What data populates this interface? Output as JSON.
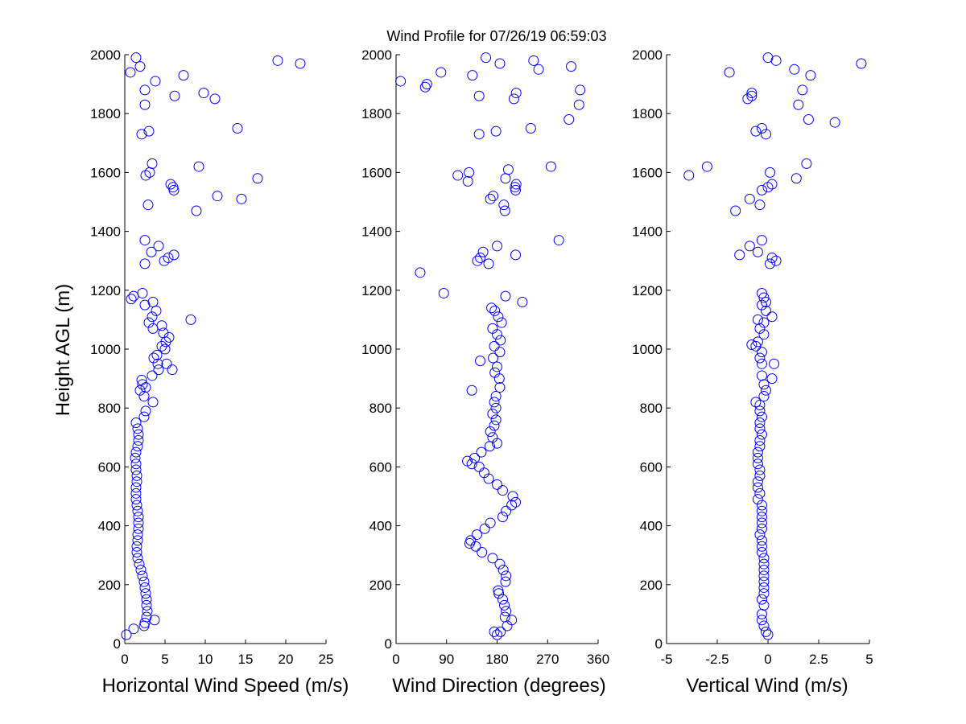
{
  "title": "Wind Profile for  07/26/19 06:59:03",
  "colors": {
    "marker": "#0000ff",
    "axis": "#000000",
    "background": "#ffffff"
  },
  "chart_data": [
    {
      "type": "scatter",
      "xlabel": "Horizontal Wind Speed (m/s)",
      "ylabel": "Height AGL (m)",
      "xlim": [
        0,
        25
      ],
      "ylim": [
        0,
        2000
      ],
      "xticks": [
        "0",
        "5",
        "10",
        "15",
        "20",
        "25"
      ],
      "yticks": [
        "0",
        "200",
        "400",
        "600",
        "800",
        "1000",
        "1200",
        "1400",
        "1600",
        "1800",
        "2000"
      ],
      "grid": false,
      "points": [
        [
          0.2,
          30
        ],
        [
          1.1,
          50
        ],
        [
          2.4,
          60
        ],
        [
          3.7,
          80
        ],
        [
          2.5,
          70
        ],
        [
          2.7,
          90
        ],
        [
          2.8,
          110
        ],
        [
          2.7,
          130
        ],
        [
          2.7,
          150
        ],
        [
          2.6,
          170
        ],
        [
          2.5,
          190
        ],
        [
          2.4,
          210
        ],
        [
          2.2,
          230
        ],
        [
          2.0,
          250
        ],
        [
          1.8,
          270
        ],
        [
          1.6,
          290
        ],
        [
          1.5,
          310
        ],
        [
          1.5,
          330
        ],
        [
          1.6,
          350
        ],
        [
          1.6,
          370
        ],
        [
          1.7,
          390
        ],
        [
          1.7,
          410
        ],
        [
          1.7,
          430
        ],
        [
          1.6,
          450
        ],
        [
          1.5,
          470
        ],
        [
          1.4,
          490
        ],
        [
          1.4,
          510
        ],
        [
          1.4,
          530
        ],
        [
          1.5,
          550
        ],
        [
          1.5,
          570
        ],
        [
          1.4,
          590
        ],
        [
          1.4,
          610
        ],
        [
          1.3,
          630
        ],
        [
          1.4,
          650
        ],
        [
          1.6,
          670
        ],
        [
          1.7,
          690
        ],
        [
          1.7,
          710
        ],
        [
          1.6,
          730
        ],
        [
          1.4,
          750
        ],
        [
          2.4,
          770
        ],
        [
          2.6,
          790
        ],
        [
          3.5,
          820
        ],
        [
          2.4,
          840
        ],
        [
          1.9,
          860
        ],
        [
          2.6,
          870
        ],
        [
          2.2,
          880
        ],
        [
          2.1,
          895
        ],
        [
          3.4,
          910
        ],
        [
          4.2,
          930
        ],
        [
          5.9,
          930
        ],
        [
          4.1,
          950
        ],
        [
          5.2,
          950
        ],
        [
          3.6,
          970
        ],
        [
          4.0,
          980
        ],
        [
          5.0,
          1000
        ],
        [
          4.6,
          1010
        ],
        [
          5.1,
          1025
        ],
        [
          5.5,
          1040
        ],
        [
          4.8,
          1055
        ],
        [
          3.5,
          1070
        ],
        [
          4.6,
          1080
        ],
        [
          3.0,
          1090
        ],
        [
          8.2,
          1100
        ],
        [
          3.4,
          1110
        ],
        [
          3.9,
          1130
        ],
        [
          2.5,
          1150
        ],
        [
          3.5,
          1160
        ],
        [
          0.8,
          1170
        ],
        [
          1.1,
          1180
        ],
        [
          2.2,
          1190
        ],
        [
          2.5,
          1290
        ],
        [
          4.9,
          1300
        ],
        [
          5.4,
          1310
        ],
        [
          6.1,
          1320
        ],
        [
          3.3,
          1330
        ],
        [
          4.2,
          1350
        ],
        [
          2.5,
          1370
        ],
        [
          8.9,
          1470
        ],
        [
          2.9,
          1490
        ],
        [
          14.5,
          1510
        ],
        [
          11.5,
          1520
        ],
        [
          6.1,
          1540
        ],
        [
          6.0,
          1550
        ],
        [
          5.7,
          1560
        ],
        [
          16.5,
          1580
        ],
        [
          2.6,
          1590
        ],
        [
          3.1,
          1600
        ],
        [
          9.2,
          1620
        ],
        [
          3.4,
          1630
        ],
        [
          3.0,
          1740
        ],
        [
          2.1,
          1730
        ],
        [
          14.0,
          1750
        ],
        [
          2.5,
          1830
        ],
        [
          11.2,
          1850
        ],
        [
          6.2,
          1860
        ],
        [
          9.8,
          1870
        ],
        [
          2.5,
          1880
        ],
        [
          3.8,
          1910
        ],
        [
          7.3,
          1930
        ],
        [
          0.7,
          1940
        ],
        [
          1.9,
          1960
        ],
        [
          19.0,
          1980
        ],
        [
          21.8,
          1970
        ],
        [
          1.4,
          1990
        ]
      ]
    },
    {
      "type": "scatter",
      "xlabel": "Wind Direction (degrees)",
      "ylabel": "",
      "xlim": [
        0,
        360
      ],
      "ylim": [
        0,
        2000
      ],
      "xticks": [
        "0",
        "90",
        "180",
        "270",
        "360"
      ],
      "yticks": [
        "0",
        "200",
        "400",
        "600",
        "800",
        "1000",
        "1200",
        "1400",
        "1600",
        "1800",
        "2000"
      ],
      "grid": false,
      "points": [
        [
          180,
          30
        ],
        [
          175,
          40
        ],
        [
          186,
          40
        ],
        [
          198,
          60
        ],
        [
          206,
          80
        ],
        [
          194,
          90
        ],
        [
          196,
          110
        ],
        [
          193,
          130
        ],
        [
          190,
          150
        ],
        [
          183,
          170
        ],
        [
          182,
          180
        ],
        [
          195,
          210
        ],
        [
          196,
          230
        ],
        [
          191,
          250
        ],
        [
          185,
          270
        ],
        [
          172,
          290
        ],
        [
          153,
          310
        ],
        [
          142,
          330
        ],
        [
          131,
          340
        ],
        [
          133,
          350
        ],
        [
          144,
          370
        ],
        [
          158,
          390
        ],
        [
          168,
          410
        ],
        [
          190,
          430
        ],
        [
          196,
          450
        ],
        [
          206,
          470
        ],
        [
          213,
          480
        ],
        [
          208,
          500
        ],
        [
          190,
          520
        ],
        [
          180,
          540
        ],
        [
          165,
          560
        ],
        [
          157,
          580
        ],
        [
          148,
          600
        ],
        [
          135,
          610
        ],
        [
          127,
          620
        ],
        [
          140,
          630
        ],
        [
          152,
          650
        ],
        [
          167,
          670
        ],
        [
          180,
          680
        ],
        [
          172,
          700
        ],
        [
          168,
          720
        ],
        [
          175,
          740
        ],
        [
          178,
          760
        ],
        [
          172,
          780
        ],
        [
          178,
          800
        ],
        [
          175,
          820
        ],
        [
          178,
          840
        ],
        [
          135,
          860
        ],
        [
          185,
          870
        ],
        [
          184,
          900
        ],
        [
          176,
          920
        ],
        [
          180,
          940
        ],
        [
          150,
          960
        ],
        [
          173,
          970
        ],
        [
          185,
          990
        ],
        [
          175,
          1010
        ],
        [
          186,
          1030
        ],
        [
          180,
          1050
        ],
        [
          172,
          1070
        ],
        [
          188,
          1090
        ],
        [
          182,
          1110
        ],
        [
          176,
          1130
        ],
        [
          170,
          1140
        ],
        [
          225,
          1160
        ],
        [
          195,
          1180
        ],
        [
          85,
          1190
        ],
        [
          43,
          1260
        ],
        [
          165,
          1290
        ],
        [
          145,
          1300
        ],
        [
          150,
          1310
        ],
        [
          213,
          1320
        ],
        [
          155,
          1330
        ],
        [
          180,
          1350
        ],
        [
          290,
          1370
        ],
        [
          194,
          1470
        ],
        [
          192,
          1490
        ],
        [
          168,
          1510
        ],
        [
          173,
          1520
        ],
        [
          213,
          1540
        ],
        [
          212,
          1550
        ],
        [
          214,
          1560
        ],
        [
          110,
          1590
        ],
        [
          195,
          1580
        ],
        [
          130,
          1600
        ],
        [
          276,
          1620
        ],
        [
          200,
          1610
        ],
        [
          128,
          1570
        ],
        [
          240,
          1750
        ],
        [
          178,
          1740
        ],
        [
          148,
          1730
        ],
        [
          308,
          1780
        ],
        [
          326,
          1830
        ],
        [
          148,
          1860
        ],
        [
          210,
          1850
        ],
        [
          214,
          1870
        ],
        [
          328,
          1880
        ],
        [
          52,
          1890
        ],
        [
          55,
          1900
        ],
        [
          8,
          1910
        ],
        [
          136,
          1930
        ],
        [
          80,
          1940
        ],
        [
          254,
          1950
        ],
        [
          312,
          1960
        ],
        [
          245,
          1980
        ],
        [
          185,
          1970
        ],
        [
          160,
          1990
        ]
      ]
    },
    {
      "type": "scatter",
      "xlabel": "Vertical Wind (m/s)",
      "ylabel": "",
      "xlim": [
        -5,
        5
      ],
      "ylim": [
        0,
        2000
      ],
      "xticks": [
        "-5",
        "-2.5",
        "0",
        "2.5",
        "5"
      ],
      "yticks": [
        "0",
        "200",
        "400",
        "600",
        "800",
        "1000",
        "1200",
        "1400",
        "1600",
        "1800",
        "2000"
      ],
      "grid": false,
      "points": [
        [
          0.0,
          30
        ],
        [
          -0.1,
          40
        ],
        [
          -0.2,
          60
        ],
        [
          -0.3,
          80
        ],
        [
          -0.3,
          100
        ],
        [
          -0.2,
          130
        ],
        [
          -0.3,
          150
        ],
        [
          -0.2,
          170
        ],
        [
          -0.2,
          190
        ],
        [
          -0.2,
          210
        ],
        [
          -0.2,
          230
        ],
        [
          -0.2,
          250
        ],
        [
          -0.2,
          270
        ],
        [
          -0.2,
          290
        ],
        [
          -0.3,
          310
        ],
        [
          -0.3,
          330
        ],
        [
          -0.3,
          350
        ],
        [
          -0.4,
          370
        ],
        [
          -0.3,
          390
        ],
        [
          -0.3,
          410
        ],
        [
          -0.3,
          430
        ],
        [
          -0.3,
          450
        ],
        [
          -0.3,
          470
        ],
        [
          -0.5,
          490
        ],
        [
          -0.4,
          510
        ],
        [
          -0.5,
          530
        ],
        [
          -0.5,
          550
        ],
        [
          -0.4,
          570
        ],
        [
          -0.4,
          590
        ],
        [
          -0.5,
          610
        ],
        [
          -0.5,
          630
        ],
        [
          -0.5,
          650
        ],
        [
          -0.4,
          670
        ],
        [
          -0.4,
          690
        ],
        [
          -0.3,
          710
        ],
        [
          -0.4,
          730
        ],
        [
          -0.4,
          750
        ],
        [
          -0.3,
          770
        ],
        [
          -0.4,
          790
        ],
        [
          -0.4,
          810
        ],
        [
          -0.6,
          820
        ],
        [
          -0.2,
          840
        ],
        [
          -0.1,
          860
        ],
        [
          -0.2,
          880
        ],
        [
          0.2,
          900
        ],
        [
          -0.3,
          910
        ],
        [
          0.3,
          950
        ],
        [
          -0.3,
          950
        ],
        [
          -0.4,
          970
        ],
        [
          -0.3,
          990
        ],
        [
          -0.6,
          1010
        ],
        [
          -0.8,
          1015
        ],
        [
          -0.5,
          1025
        ],
        [
          -0.2,
          1050
        ],
        [
          -0.4,
          1070
        ],
        [
          -0.2,
          1090
        ],
        [
          0.2,
          1110
        ],
        [
          -0.1,
          1130
        ],
        [
          -0.3,
          1150
        ],
        [
          -0.1,
          1160
        ],
        [
          -0.2,
          1175
        ],
        [
          -0.3,
          1190
        ],
        [
          -0.5,
          1100
        ],
        [
          0.1,
          1290
        ],
        [
          0.4,
          1300
        ],
        [
          0.2,
          1310
        ],
        [
          -1.4,
          1320
        ],
        [
          -0.5,
          1330
        ],
        [
          -0.9,
          1350
        ],
        [
          -0.3,
          1370
        ],
        [
          -1.6,
          1470
        ],
        [
          -0.4,
          1490
        ],
        [
          -0.9,
          1510
        ],
        [
          -0.3,
          1540
        ],
        [
          0.0,
          1550
        ],
        [
          0.2,
          1560
        ],
        [
          1.4,
          1580
        ],
        [
          -3.9,
          1590
        ],
        [
          0.1,
          1600
        ],
        [
          -3.0,
          1620
        ],
        [
          1.9,
          1630
        ],
        [
          -0.3,
          1750
        ],
        [
          -0.6,
          1740
        ],
        [
          -0.1,
          1730
        ],
        [
          3.3,
          1770
        ],
        [
          2.0,
          1780
        ],
        [
          1.5,
          1830
        ],
        [
          -1.0,
          1850
        ],
        [
          -0.8,
          1860
        ],
        [
          -0.8,
          1870
        ],
        [
          1.7,
          1880
        ],
        [
          -1.9,
          1940
        ],
        [
          2.1,
          1930
        ],
        [
          1.3,
          1950
        ],
        [
          0.4,
          1980
        ],
        [
          4.6,
          1970
        ],
        [
          0.0,
          1990
        ]
      ]
    }
  ]
}
